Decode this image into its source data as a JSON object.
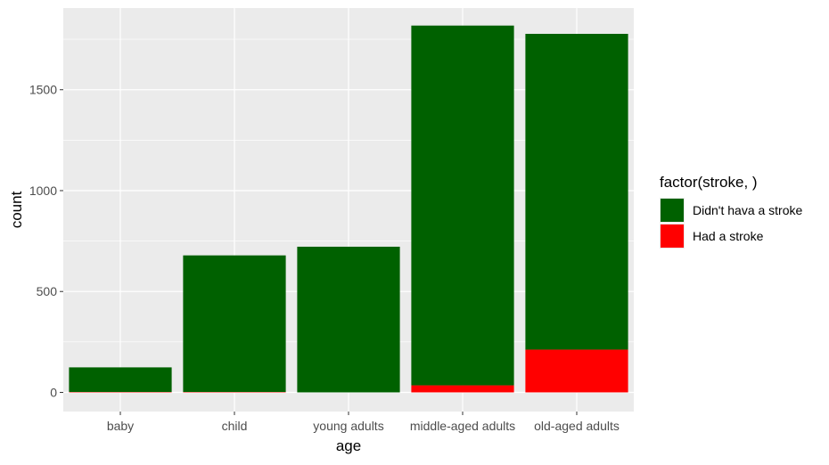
{
  "chart_data": {
    "type": "bar",
    "stacked": true,
    "categories": [
      "baby",
      "child",
      "young adults",
      "middle-aged adults",
      "old-aged adults"
    ],
    "series": [
      {
        "name": "Had a stroke",
        "color": "#ff0000",
        "values": [
          2,
          2,
          0,
          35,
          212
        ]
      },
      {
        "name": "Didn't hava a stroke",
        "color": "#006100",
        "values": [
          122,
          677,
          722,
          1783,
          1565
        ]
      }
    ],
    "xlabel": "age",
    "ylabel": "count",
    "yticks": [
      0,
      500,
      1000,
      1500
    ],
    "ylim": [
      -95,
      1905
    ],
    "grid": true,
    "legend": {
      "title": "factor(stroke, )",
      "position": "right",
      "entries": [
        {
          "label": "Didn't hava a stroke",
          "color": "#006100"
        },
        {
          "label": "Had a stroke",
          "color": "#ff0000"
        }
      ]
    },
    "colors": {
      "panel": "#ebebeb",
      "grid": "#ffffff",
      "text": "#4d4d4d",
      "title": "#000000"
    }
  }
}
